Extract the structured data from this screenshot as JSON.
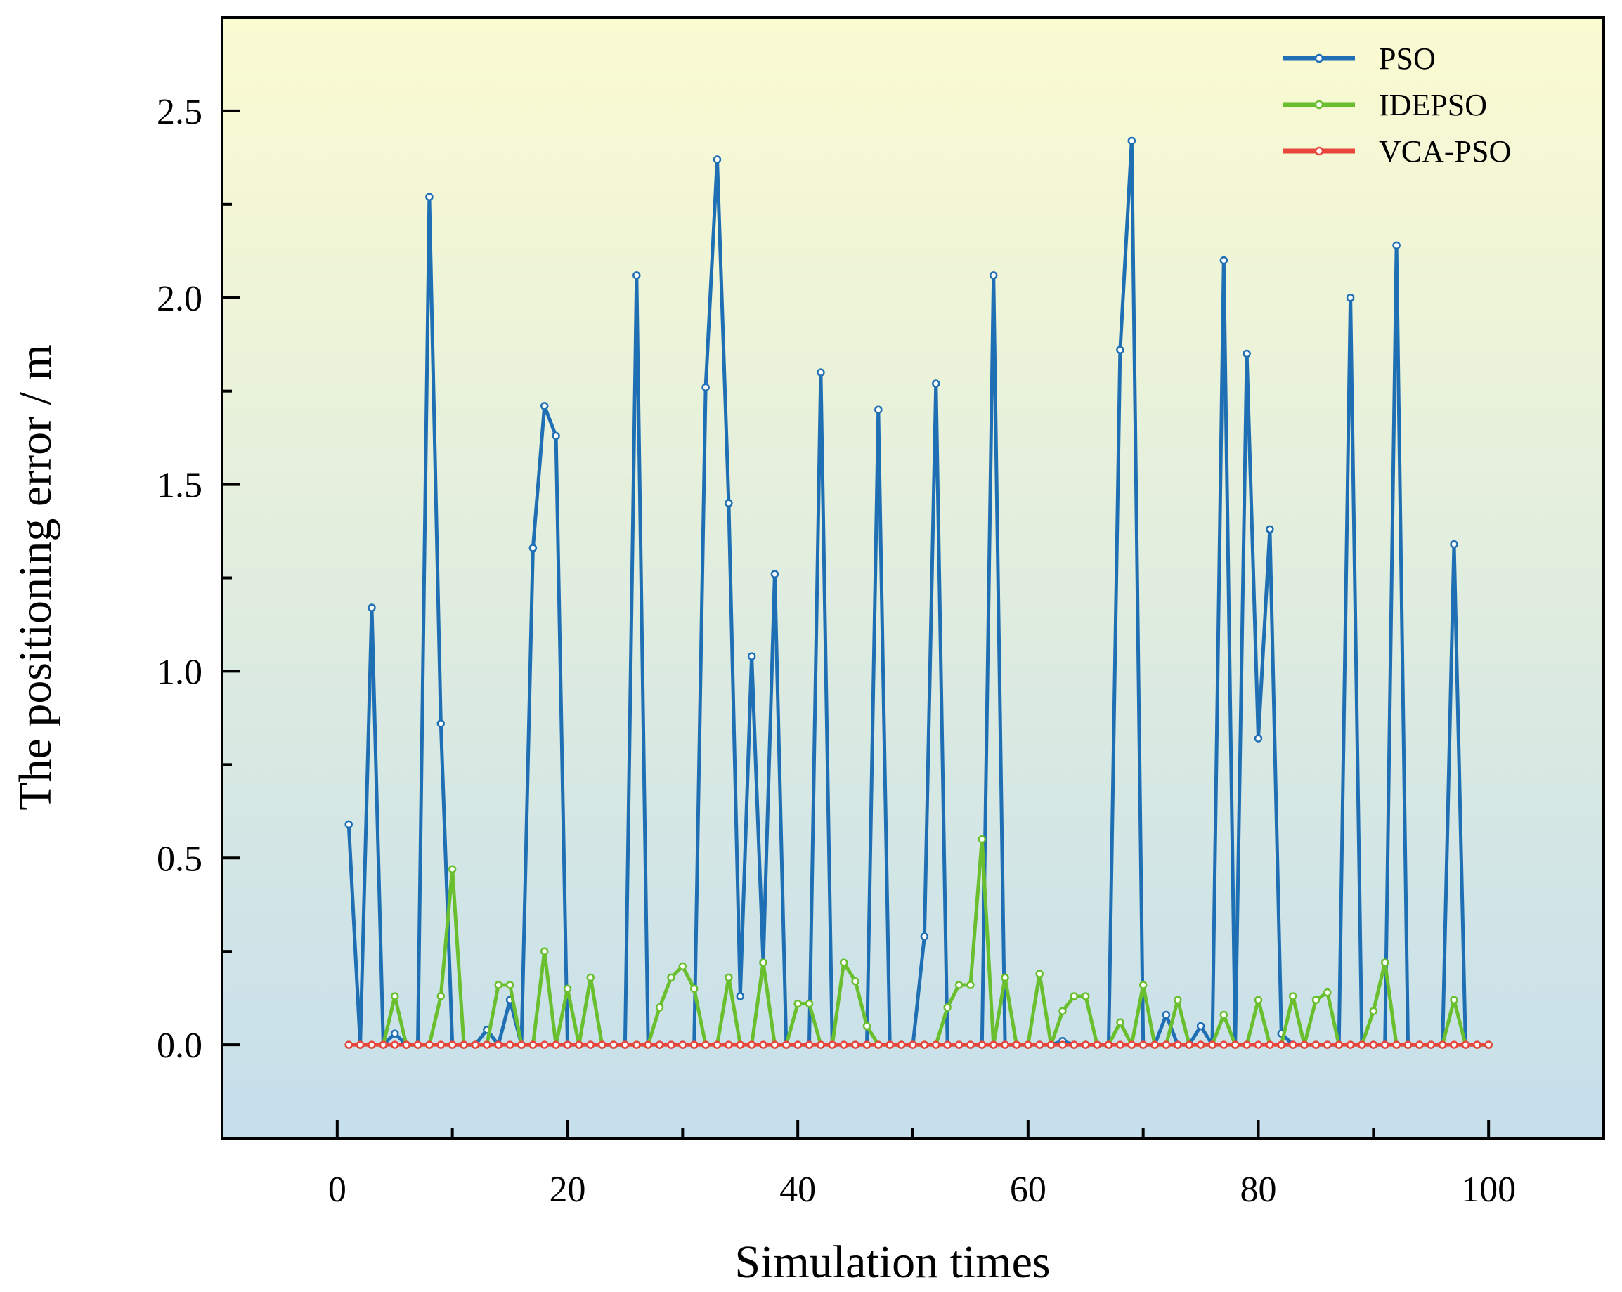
{
  "chart_data": {
    "type": "line",
    "xlabel": "Simulation times",
    "ylabel": "The positioning error / m",
    "xlim": [
      -10,
      110
    ],
    "ylim": [
      -0.25,
      2.75
    ],
    "xticks": [
      0,
      20,
      40,
      60,
      80,
      100
    ],
    "xtick_labels": [
      "0",
      "20",
      "40",
      "60",
      "80",
      "100"
    ],
    "yticks": [
      0.0,
      0.5,
      1.0,
      1.5,
      2.0,
      2.5
    ],
    "ytick_labels": [
      "0.0",
      "0.5",
      "1.0",
      "1.5",
      "2.0",
      "2.5"
    ],
    "legend_position": "top-right",
    "background": {
      "top": "#fbfbd1",
      "bottom": "#c6dfec"
    },
    "x": [
      1,
      2,
      3,
      4,
      5,
      6,
      7,
      8,
      9,
      10,
      11,
      12,
      13,
      14,
      15,
      16,
      17,
      18,
      19,
      20,
      21,
      22,
      23,
      24,
      25,
      26,
      27,
      28,
      29,
      30,
      31,
      32,
      33,
      34,
      35,
      36,
      37,
      38,
      39,
      40,
      41,
      42,
      43,
      44,
      45,
      46,
      47,
      48,
      49,
      50,
      51,
      52,
      53,
      54,
      55,
      56,
      57,
      58,
      59,
      60,
      61,
      62,
      63,
      64,
      65,
      66,
      67,
      68,
      69,
      70,
      71,
      72,
      73,
      74,
      75,
      76,
      77,
      78,
      79,
      80,
      81,
      82,
      83,
      84,
      85,
      86,
      87,
      88,
      89,
      90,
      91,
      92,
      93,
      94,
      95,
      96,
      97,
      98,
      99,
      100
    ],
    "series": [
      {
        "name": "PSO",
        "color": "#1f6fb4",
        "values": [
          0.59,
          0,
          1.17,
          0,
          0.03,
          0,
          0,
          2.27,
          0.86,
          0,
          0,
          0,
          0.04,
          0,
          0.12,
          0,
          1.33,
          1.71,
          1.63,
          0,
          0,
          0,
          0,
          0,
          0,
          2.06,
          0,
          0,
          0,
          0,
          0,
          1.76,
          2.37,
          1.45,
          0.13,
          1.04,
          0.22,
          1.26,
          0,
          0,
          0,
          1.8,
          0,
          0,
          0,
          0,
          1.7,
          0,
          0,
          0,
          0.29,
          1.77,
          0,
          0,
          0,
          0,
          2.06,
          0,
          0,
          0,
          0,
          0,
          0.01,
          0,
          0,
          0,
          0,
          1.86,
          2.42,
          0,
          0,
          0.08,
          0,
          0,
          0.05,
          0,
          2.1,
          0,
          1.85,
          0.82,
          1.38,
          0.03,
          0,
          0,
          0,
          0,
          0,
          2.0,
          0,
          0,
          0,
          2.14,
          0,
          0,
          0,
          0,
          1.34,
          0,
          0,
          0
        ]
      },
      {
        "name": "IDEPSO",
        "color": "#6abf2e",
        "values": [
          0,
          0,
          0,
          0,
          0.13,
          0,
          0,
          0,
          0.13,
          0.47,
          0,
          0,
          0,
          0.16,
          0.16,
          0,
          0,
          0.25,
          0,
          0.15,
          0,
          0.18,
          0,
          0,
          0,
          0,
          0,
          0.1,
          0.18,
          0.21,
          0.15,
          0,
          0,
          0.18,
          0,
          0,
          0.22,
          0,
          0,
          0.11,
          0.11,
          0,
          0,
          0.22,
          0.17,
          0.05,
          0,
          0,
          0,
          0,
          0,
          0,
          0.1,
          0.16,
          0.16,
          0.55,
          0,
          0.18,
          0,
          0,
          0.19,
          0,
          0.09,
          0.13,
          0.13,
          0,
          0,
          0.06,
          0,
          0.16,
          0,
          0,
          0.12,
          0,
          0,
          0,
          0.08,
          0,
          0,
          0.12,
          0,
          0,
          0.13,
          0,
          0.12,
          0.14,
          0,
          0,
          0,
          0.09,
          0.22,
          0,
          0,
          0,
          0,
          0,
          0.12,
          0,
          0,
          0
        ]
      },
      {
        "name": "VCA-PSO",
        "color": "#e8463c",
        "values": [
          0,
          0,
          0,
          0,
          0,
          0,
          0,
          0,
          0,
          0,
          0,
          0,
          0,
          0,
          0,
          0,
          0,
          0,
          0,
          0,
          0,
          0,
          0,
          0,
          0,
          0,
          0,
          0,
          0,
          0,
          0,
          0,
          0,
          0,
          0,
          0,
          0,
          0,
          0,
          0,
          0,
          0,
          0,
          0,
          0,
          0,
          0,
          0,
          0,
          0,
          0,
          0,
          0,
          0,
          0,
          0,
          0,
          0,
          0,
          0,
          0,
          0,
          0,
          0,
          0,
          0,
          0,
          0,
          0,
          0,
          0,
          0,
          0,
          0,
          0,
          0,
          0,
          0,
          0,
          0,
          0,
          0,
          0,
          0,
          0,
          0,
          0,
          0,
          0,
          0,
          0,
          0,
          0,
          0,
          0,
          0,
          0,
          0,
          0,
          0
        ]
      }
    ]
  }
}
